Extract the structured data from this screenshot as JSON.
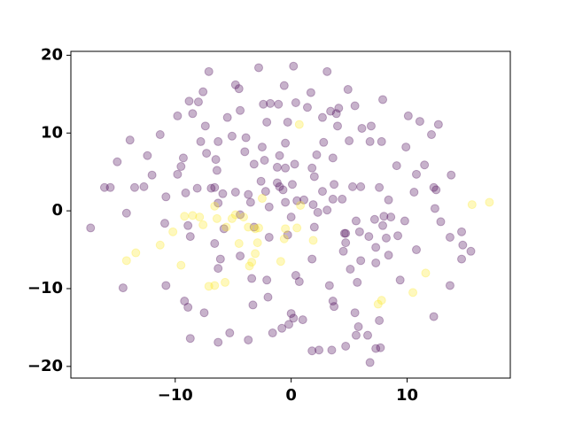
{
  "chart_data": {
    "type": "scatter",
    "xlim": [
      -19.0,
      18.9
    ],
    "ylim": [
      -21.5,
      20.5
    ],
    "xticks": [
      {
        "value": -10,
        "label": "−10"
      },
      0,
      10
    ],
    "yticks": [
      {
        "value": -20,
        "label": "−20"
      },
      {
        "value": -10,
        "label": "−10"
      },
      0,
      10,
      20
    ],
    "grid": false,
    "series": [
      {
        "color": "#440154",
        "x": [
          -17.3,
          -16.1,
          -15.6,
          -15.0,
          -13.9,
          -14.2,
          -14.5,
          -13.5,
          -12.7,
          -12.4,
          -12.0,
          -11.3,
          -10.8,
          -10.9,
          -10.8,
          -9.8,
          -9.8,
          -9.5,
          -9.3,
          -9.1,
          -8.9,
          -8.7,
          -9.2,
          -8.9,
          -8.7,
          -8.8,
          -8.5,
          -8.1,
          -8.0,
          -7.8,
          -7.6,
          -7.4,
          -7.3,
          -7.5,
          -7.1,
          -6.9,
          -6.6,
          -6.6,
          -6.5,
          -6.3,
          -6.4,
          -6.3,
          -6.1,
          -6.3,
          -6.3,
          -5.9,
          -5.8,
          -5.5,
          -5.3,
          -5.1,
          -4.8,
          -4.5,
          -4.8,
          -4.4,
          -4.4,
          -4.4,
          -4.0,
          -3.9,
          -3.7,
          -3.5,
          -3.7,
          -3.3,
          -3.2,
          -3.4,
          -3.2,
          -2.8,
          -2.6,
          -2.5,
          -2.4,
          -2.1,
          -2.2,
          -2.3,
          -2.1,
          -2.0,
          -1.9,
          -1.9,
          -1.8,
          -1.6,
          -1.2,
          -1.2,
          -1.1,
          -1.0,
          -1.0,
          -0.8,
          -0.6,
          -0.5,
          -0.5,
          -0.7,
          -0.5,
          -0.3,
          -0.3,
          -0.2,
          0.0,
          0.2,
          0.2,
          0.0,
          0.1,
          0.3,
          0.4,
          0.5,
          0.4,
          0.7,
          1.0,
          1.1,
          1.4,
          1.7,
          1.8,
          2.0,
          2.0,
          1.8,
          1.9,
          1.8,
          2.2,
          2.3,
          2.4,
          2.7,
          2.7,
          2.8,
          3.1,
          3.1,
          3.3,
          3.4,
          3.5,
          3.6,
          3.6,
          3.7,
          3.6,
          3.7,
          3.9,
          4.1,
          4.0,
          4.4,
          4.5,
          4.6,
          4.7,
          4.7,
          4.9,
          5.0,
          5.1,
          5.3,
          5.5,
          5.5,
          5.6,
          5.7,
          5.8,
          5.9,
          6.0,
          6.0,
          6.1,
          6.6,
          6.7,
          6.8,
          6.9,
          7.3,
          7.2,
          7.3,
          7.3,
          7.6,
          7.6,
          7.7,
          7.8,
          7.9,
          7.9,
          8.0,
          8.2,
          8.4,
          8.4,
          8.6,
          9.1,
          9.2,
          9.4,
          9.8,
          9.9,
          10.1,
          10.6,
          10.8,
          10.8,
          11.1,
          11.5,
          12.1,
          12.3,
          12.4,
          12.5,
          12.7,
          12.9,
          13.7,
          13.7,
          13.8,
          14.7,
          14.7,
          14.8,
          15.5,
          12.3,
          5.6,
          4.7,
          6.8
        ],
        "y": [
          -2.2,
          3.0,
          3.0,
          6.3,
          9.1,
          -0.3,
          -9.9,
          3.0,
          3.1,
          7.1,
          4.6,
          9.8,
          1.8,
          -1.6,
          -9.6,
          12.2,
          4.7,
          5.7,
          6.8,
          2.3,
          -1.9,
          -3.3,
          -11.6,
          -12.4,
          -16.4,
          14.1,
          12.5,
          2.9,
          14.0,
          8.9,
          15.3,
          10.9,
          7.4,
          -13.1,
          17.9,
          2.9,
          3.0,
          -4.2,
          6.6,
          8.9,
          5.2,
          -7.4,
          -6.2,
          -16.9,
          1.0,
          2.2,
          -2.3,
          12.0,
          -15.7,
          9.6,
          16.2,
          15.7,
          2.4,
          -0.5,
          -5.8,
          12.9,
          7.6,
          9.4,
          2.1,
          1.1,
          -16.6,
          -12.1,
          6.0,
          -8.7,
          -2.1,
          18.4,
          3.8,
          8.2,
          13.7,
          11.4,
          2.5,
          6.5,
          -8.9,
          -11.1,
          -3.4,
          0.5,
          13.8,
          -15.7,
          5.6,
          3.6,
          13.7,
          7.1,
          3.1,
          -15.1,
          16.1,
          8.7,
          5.5,
          2.7,
          1.1,
          11.4,
          -3.1,
          -14.6,
          -13.2,
          -13.8,
          18.6,
          -0.8,
          3.4,
          6.0,
          13.9,
          1.3,
          -8.3,
          -9.1,
          -14.0,
          1.4,
          13.3,
          15.2,
          5.5,
          4.4,
          -2.1,
          -6.2,
          0.8,
          -18.0,
          7.2,
          -0.2,
          -17.9,
          12.0,
          2.5,
          8.8,
          17.9,
          0.1,
          -9.6,
          12.8,
          -17.9,
          6.8,
          -11.6,
          -12.3,
          1.5,
          3.4,
          12.5,
          13.2,
          10.9,
          1.5,
          -5.2,
          -2.9,
          -4.1,
          -2.9,
          15.6,
          9.0,
          -7.5,
          3.1,
          -13.1,
          13.5,
          -1.3,
          -9.2,
          -14.9,
          -2.7,
          -6.4,
          3.1,
          10.6,
          -16.0,
          -3.3,
          8.9,
          10.9,
          -4.7,
          -1.1,
          -6.7,
          -17.7,
          3.0,
          -14.1,
          -17.6,
          8.9,
          14.3,
          -1.9,
          -0.7,
          -3.5,
          -5.7,
          1.4,
          -0.8,
          5.8,
          -3.2,
          -8.9,
          -1.3,
          8.2,
          12.2,
          2.4,
          4.7,
          -5.0,
          11.5,
          5.9,
          9.8,
          -13.6,
          0.3,
          2.7,
          11.1,
          -1.4,
          -9.6,
          -3.4,
          4.6,
          -2.7,
          -6.2,
          -4.4,
          -5.2,
          3.0,
          -16.0,
          -17.4,
          -19.5
        ]
      },
      {
        "color": "#fde725",
        "x": [
          -13.4,
          -14.2,
          -11.3,
          -10.2,
          -9.5,
          -9.2,
          -8.5,
          -7.9,
          -7.6,
          -7.1,
          -6.6,
          -6.6,
          -6.4,
          -5.7,
          -5.6,
          -5.1,
          -4.8,
          -4.5,
          -4.1,
          -3.7,
          -3.6,
          -3.4,
          -3.1,
          -2.8,
          -3.1,
          -2.9,
          -2.5,
          -0.9,
          -0.6,
          -0.5,
          0.5,
          0.7,
          0.8,
          1.9,
          7.5,
          7.8,
          10.5,
          11.6,
          15.6,
          17.1
        ],
        "y": [
          -5.4,
          -6.4,
          -4.4,
          -2.7,
          -7.0,
          -0.7,
          -0.6,
          -0.8,
          -1.8,
          -9.7,
          -9.6,
          0.6,
          -1.0,
          -9.2,
          -2.1,
          -1.0,
          -0.5,
          -4.2,
          -0.8,
          -2.1,
          -7.1,
          -6.6,
          -2.3,
          -2.2,
          -5.5,
          -4.1,
          1.6,
          -6.5,
          -3.6,
          -2.3,
          -2.2,
          11.1,
          0.7,
          -3.8,
          -12.0,
          -11.5,
          -10.5,
          -8.0,
          0.8,
          1.1
        ]
      }
    ]
  }
}
